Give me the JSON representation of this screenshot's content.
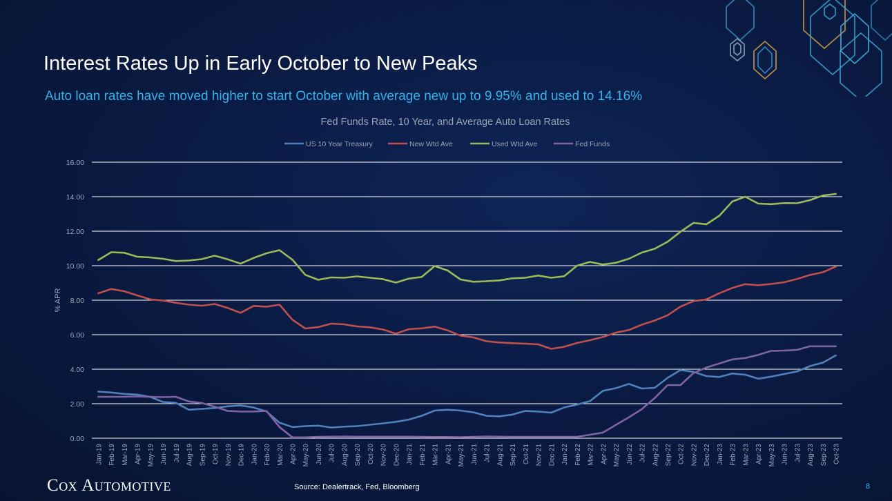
{
  "slide": {
    "title": "Interest Rates Up in Early October to New Peaks",
    "subtitle": "Auto loan rates have moved higher to start October with average new up to 9.95% and used to 14.16%",
    "source": "Source: Dealertrack, Fed, Bloomberg",
    "page_number": "8",
    "logo": {
      "c": "C",
      "ox": "OX",
      "a": "A",
      "utomotive": "UTOMOTIVE"
    }
  },
  "colors": {
    "treasury": "#4f81bd",
    "new": "#c0504d",
    "used": "#9bbb59",
    "fed": "#8064a2",
    "grid": "#ffffff",
    "text": "#9aa3b8"
  },
  "chart_data": {
    "type": "line",
    "title": "Fed Funds Rate, 10 Year, and Average Auto Loan Rates",
    "xlabel": "",
    "ylabel": "% APR",
    "ylim": [
      0,
      16
    ],
    "yticks": [
      "0.00",
      "2.00",
      "4.00",
      "6.00",
      "8.00",
      "10.00",
      "12.00",
      "14.00",
      "16.00"
    ],
    "legend_position": "top",
    "categories": [
      "Jan-19",
      "Feb-19",
      "Mar-19",
      "Apr-19",
      "May-19",
      "Jun-19",
      "Jul-19",
      "Aug-19",
      "Sep-19",
      "Oct-19",
      "Nov-19",
      "Dec-19",
      "Jan-20",
      "Feb-20",
      "Mar-20",
      "Apr-20",
      "May-20",
      "Jun-20",
      "Jul-20",
      "Aug-20",
      "Sep-20",
      "Oct-20",
      "Nov-20",
      "Dec-20",
      "Jan-21",
      "Feb-21",
      "Mar-21",
      "Apr-21",
      "May-21",
      "Jun-21",
      "Jul-21",
      "Aug-21",
      "Sep-21",
      "Oct-21",
      "Nov-21",
      "Dec-21",
      "Jan-22",
      "Feb-22",
      "Mar-22",
      "Apr-22",
      "May-22",
      "Jun-22",
      "Jul-22",
      "Aug-22",
      "Sep-22",
      "Oct-22",
      "Nov-22",
      "Dec-22",
      "Jan-23",
      "Feb-23",
      "Mar-23",
      "Apr-23",
      "May-23",
      "Jun-23",
      "Jul-23",
      "Aug-23",
      "Sep-23",
      "Oct-23"
    ],
    "series": [
      {
        "name": "US 10 Year Treasury",
        "values": [
          2.7,
          2.65,
          2.57,
          2.53,
          2.4,
          2.1,
          2.05,
          1.65,
          1.7,
          1.75,
          1.85,
          1.9,
          1.78,
          1.55,
          0.9,
          0.65,
          0.7,
          0.73,
          0.62,
          0.67,
          0.7,
          0.78,
          0.86,
          0.95,
          1.08,
          1.3,
          1.6,
          1.65,
          1.6,
          1.5,
          1.3,
          1.27,
          1.37,
          1.58,
          1.55,
          1.48,
          1.78,
          1.95,
          2.15,
          2.75,
          2.9,
          3.15,
          2.88,
          2.92,
          3.5,
          3.95,
          3.85,
          3.6,
          3.55,
          3.75,
          3.68,
          3.45,
          3.57,
          3.72,
          3.87,
          4.18,
          4.38,
          4.8
        ]
      },
      {
        "name": "New Wtd Ave",
        "values": [
          8.4,
          8.65,
          8.52,
          8.28,
          8.05,
          7.98,
          7.85,
          7.74,
          7.68,
          7.78,
          7.55,
          7.27,
          7.67,
          7.62,
          7.74,
          6.87,
          6.36,
          6.44,
          6.64,
          6.6,
          6.48,
          6.43,
          6.3,
          6.06,
          6.32,
          6.37,
          6.47,
          6.25,
          5.95,
          5.84,
          5.62,
          5.55,
          5.51,
          5.48,
          5.44,
          5.18,
          5.3,
          5.52,
          5.68,
          5.87,
          6.12,
          6.27,
          6.58,
          6.82,
          7.13,
          7.63,
          7.95,
          8.05,
          8.41,
          8.71,
          8.93,
          8.87,
          8.94,
          9.04,
          9.23,
          9.46,
          9.62,
          9.95
        ]
      },
      {
        "name": "Used Wtd Ave",
        "values": [
          10.33,
          10.78,
          10.75,
          10.52,
          10.48,
          10.4,
          10.27,
          10.3,
          10.38,
          10.58,
          10.37,
          10.12,
          10.45,
          10.72,
          10.9,
          10.35,
          9.47,
          9.18,
          9.32,
          9.3,
          9.38,
          9.3,
          9.22,
          9.02,
          9.25,
          9.35,
          9.98,
          9.72,
          9.2,
          9.07,
          9.1,
          9.15,
          9.27,
          9.3,
          9.43,
          9.3,
          9.39,
          10.0,
          10.22,
          10.07,
          10.17,
          10.4,
          10.76,
          10.98,
          11.39,
          11.97,
          12.48,
          12.4,
          12.9,
          13.72,
          14.0,
          13.6,
          13.57,
          13.63,
          13.62,
          13.8,
          14.07,
          14.16
        ]
      },
      {
        "name": "Fed Funds",
        "values": [
          2.4,
          2.4,
          2.4,
          2.42,
          2.4,
          2.38,
          2.4,
          2.13,
          2.04,
          1.83,
          1.58,
          1.55,
          1.55,
          1.58,
          0.65,
          0.05,
          0.05,
          0.08,
          0.09,
          0.1,
          0.09,
          0.09,
          0.09,
          0.09,
          0.09,
          0.08,
          0.07,
          0.07,
          0.06,
          0.08,
          0.1,
          0.09,
          0.08,
          0.08,
          0.08,
          0.08,
          0.08,
          0.08,
          0.2,
          0.33,
          0.77,
          1.21,
          1.68,
          2.33,
          3.08,
          3.08,
          3.78,
          4.1,
          4.33,
          4.57,
          4.65,
          4.83,
          5.06,
          5.08,
          5.12,
          5.33,
          5.33,
          5.33
        ]
      }
    ]
  }
}
